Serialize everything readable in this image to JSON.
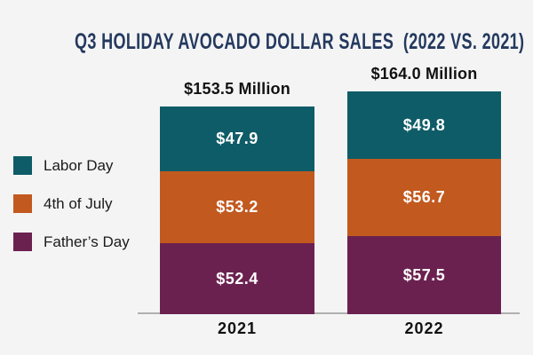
{
  "colors": {
    "background": "#f4f4f5",
    "title": "#24395e",
    "axis_line": "#b0b0b0",
    "total_label": "#111111",
    "tick_label": "#111111",
    "value_label": "#ffffff",
    "legend_label": "#1a1a1a"
  },
  "chart_data": {
    "type": "bar",
    "subtype": "stacked-vertical",
    "title": "Q3 HOLIDAY AVOCADO DOLLAR SALES  (2022 VS. 2021)",
    "value_unit": "USD millions",
    "categories": [
      "2021",
      "2022"
    ],
    "totals": [
      153.5,
      164.0
    ],
    "total_labels": [
      "$153.5 Million",
      "$164.0 Million"
    ],
    "series": [
      {
        "name": "Labor Day",
        "color": "#0e5c67",
        "values": [
          47.9,
          49.8
        ],
        "labels": [
          "$47.9",
          "$49.8"
        ]
      },
      {
        "name": "4th of July",
        "color": "#c2591f",
        "values": [
          53.2,
          56.7
        ],
        "labels": [
          "$53.2",
          "$56.7"
        ]
      },
      {
        "name": "Father’s Day",
        "color": "#6b2150",
        "values": [
          52.4,
          57.5
        ],
        "labels": [
          "$52.4",
          "$57.5"
        ]
      }
    ],
    "stack_order_top_to_bottom": [
      "Labor Day",
      "4th of July",
      "Father’s Day"
    ],
    "legend_position": "left",
    "grid": "off",
    "ylim": [
      0,
      170
    ]
  }
}
